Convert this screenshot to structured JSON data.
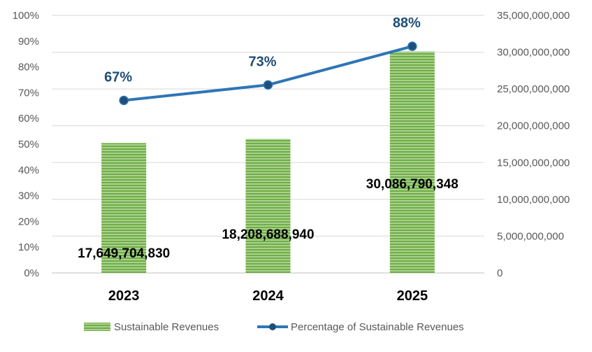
{
  "chart_data": {
    "type": "bar",
    "categories": [
      "2023",
      "2024",
      "2025"
    ],
    "series": [
      {
        "name": "Sustainable Revenues",
        "type": "bar",
        "axis": "right",
        "values": [
          17649704830,
          18208688940,
          30086790348
        ],
        "value_labels": [
          "17,649,704,830",
          "18,208,688,940",
          "30,086,790,348"
        ],
        "color": "#70AD47"
      },
      {
        "name": "Percentage of Sustainable Revenues",
        "type": "line",
        "axis": "left",
        "values": [
          67,
          73,
          88
        ],
        "value_labels": [
          "67%",
          "73%",
          "88%"
        ],
        "color": "#2E75B6",
        "marker_color": "#1F4E79"
      }
    ],
    "left_axis": {
      "ylim": [
        0,
        100
      ],
      "ticks": [
        "0%",
        "10%",
        "20%",
        "30%",
        "40%",
        "50%",
        "60%",
        "70%",
        "80%",
        "90%",
        "100%"
      ]
    },
    "right_axis": {
      "ylim": [
        0,
        35000000000
      ],
      "ticks": [
        "0",
        "5,000,000,000",
        "10,000,000,000",
        "15,000,000,000",
        "20,000,000,000",
        "25,000,000,000",
        "30,000,000,000",
        "35,000,000,000"
      ]
    },
    "gridlines": true,
    "legend_position": "bottom",
    "title": "",
    "xlabel": "",
    "ylabel": ""
  }
}
